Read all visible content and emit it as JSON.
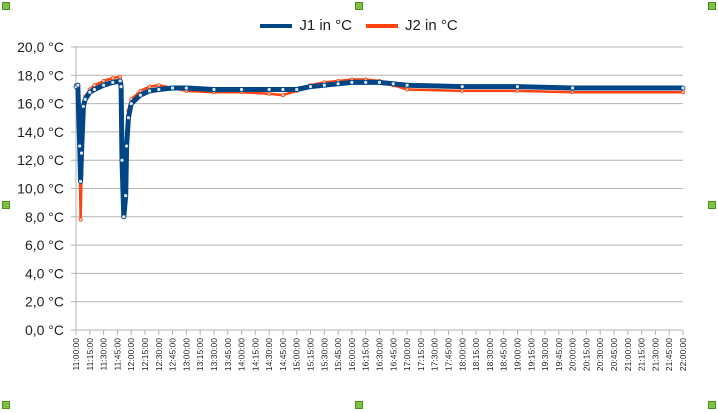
{
  "chart_data": {
    "type": "line",
    "title": "",
    "xlabel": "",
    "ylabel": "",
    "ylim": [
      0,
      20
    ],
    "y_ticks": [
      "0,0 °C",
      "2,0 °C",
      "4,0 °C",
      "6,0 °C",
      "8,0 °C",
      "10,0 °C",
      "12,0 °C",
      "14,0 °C",
      "16,0 °C",
      "18,0 °C",
      "20,0 °C"
    ],
    "x_range": [
      "11:00:00",
      "22:00:00"
    ],
    "x_ticks": [
      "11:00:00",
      "11:15:00",
      "11:30:00",
      "11:45:00",
      "12:00:00",
      "12:15:00",
      "12:30:00",
      "12:45:00",
      "13:00:00",
      "13:15:00",
      "13:30:00",
      "13:45:00",
      "14:00:00",
      "14:15:00",
      "14:30:00",
      "14:45:00",
      "15:00:00",
      "15:15:00",
      "15:30:00",
      "15:45:00",
      "16:00:00",
      "16:15:00",
      "16:30:00",
      "16:45:00",
      "17:00:00",
      "17:15:00",
      "17:30:00",
      "17:45:00",
      "18:00:00",
      "18:15:00",
      "18:30:00",
      "18:45:00",
      "19:00:00",
      "19:15:00",
      "19:30:00",
      "19:45:00",
      "20:00:00",
      "20:15:00",
      "20:30:00",
      "20:45:00",
      "21:00:00",
      "21:15:00",
      "21:30:00",
      "21:45:00",
      "22:00:00"
    ],
    "grid": true,
    "legend_position": "top",
    "x": [
      "11:00",
      "11:02",
      "11:04",
      "11:05",
      "11:06",
      "11:08",
      "11:10",
      "11:15",
      "11:20",
      "11:30",
      "11:40",
      "11:48",
      "11:49",
      "11:50",
      "11:52",
      "11:54",
      "11:55",
      "11:57",
      "12:00",
      "12:10",
      "12:20",
      "12:30",
      "12:45",
      "13:00",
      "13:30",
      "14:00",
      "14:30",
      "14:45",
      "15:00",
      "15:15",
      "15:30",
      "15:45",
      "16:00",
      "16:15",
      "16:30",
      "16:45",
      "17:00",
      "18:00",
      "19:00",
      "20:00",
      "22:00"
    ],
    "series": [
      {
        "name": "J1 in °C",
        "color": "#004586",
        "values": [
          17.2,
          17.3,
          13.0,
          10.5,
          12.5,
          15.8,
          16.3,
          16.8,
          17.0,
          17.3,
          17.5,
          17.6,
          17.2,
          12.0,
          8.0,
          9.5,
          13.0,
          15.0,
          16.0,
          16.6,
          16.9,
          17.0,
          17.1,
          17.1,
          17.0,
          17.0,
          17.0,
          17.0,
          17.0,
          17.2,
          17.3,
          17.4,
          17.5,
          17.5,
          17.5,
          17.4,
          17.3,
          17.2,
          17.2,
          17.1,
          17.1
        ]
      },
      {
        "name": "J2 in °C",
        "color": "#ff420e",
        "values": [
          17.3,
          17.2,
          12.0,
          7.8,
          11.0,
          15.5,
          16.5,
          17.0,
          17.3,
          17.6,
          17.8,
          17.9,
          17.5,
          11.0,
          8.2,
          10.0,
          13.5,
          15.5,
          16.3,
          16.9,
          17.2,
          17.3,
          17.1,
          16.9,
          16.8,
          16.8,
          16.7,
          16.6,
          16.9,
          17.3,
          17.5,
          17.6,
          17.7,
          17.7,
          17.6,
          17.3,
          17.0,
          16.9,
          16.9,
          16.8,
          16.8
        ]
      }
    ]
  },
  "colors": {
    "grid": "#b3b3b3",
    "handle": "#7dc242"
  }
}
